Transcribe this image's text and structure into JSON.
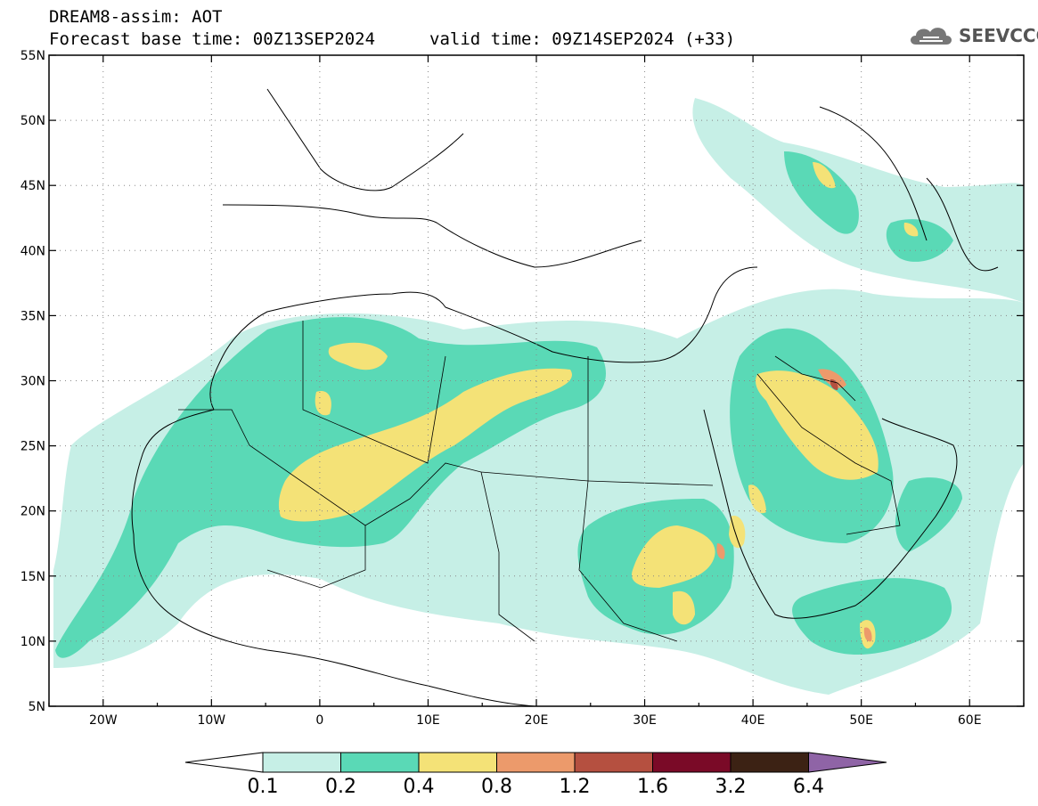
{
  "title": {
    "line1": "DREAM8-assim: AOT",
    "line2": "Forecast base time: 00Z13SEP2024",
    "valid": "valid time: 09Z14SEP2024 (+33)"
  },
  "logo": {
    "text": "SEEVCCC",
    "icon": "cloud-icon"
  },
  "map": {
    "lon_range": [
      -25,
      65
    ],
    "lat_range": [
      5,
      55
    ],
    "lat_ticks": [
      "55N",
      "50N",
      "45N",
      "40N",
      "35N",
      "30N",
      "25N",
      "20N",
      "15N",
      "10N",
      "5N"
    ],
    "lon_ticks": [
      "20W",
      "10W",
      "0",
      "10E",
      "20E",
      "30E",
      "40E",
      "50E",
      "60E"
    ],
    "grid": "dotted"
  },
  "colorbar": {
    "levels": [
      "0.1",
      "0.2",
      "0.4",
      "0.8",
      "1.2",
      "1.6",
      "3.2",
      "6.4"
    ],
    "colors": [
      "#ffffff",
      "#c6efe6",
      "#5ad9b6",
      "#f4e277",
      "#ec9a6b",
      "#b55040",
      "#7a0a27",
      "#3c2214",
      "#8f64a6"
    ]
  }
}
